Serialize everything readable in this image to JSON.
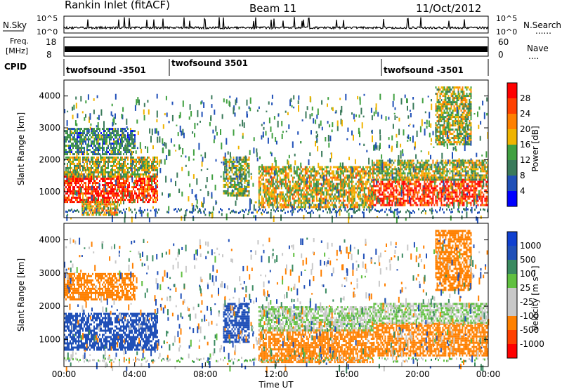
{
  "header": {
    "station": "Rankin Inlet (fitACF)",
    "beam": "Beam 11",
    "date": "11/Oct/2012"
  },
  "top_panels": {
    "nsky_label": "N.Sky",
    "nsearch_label": "N.Search",
    "nsearch_dots": "......",
    "noise_ticks": [
      "10^5",
      "10^0"
    ],
    "freq_label_1": "Freq.",
    "freq_label_2": "[MHz]",
    "freq_ticks": [
      "18",
      "8"
    ],
    "nave_label": "Nave",
    "nave_dots": "....",
    "nave_ticks": [
      "60",
      "0"
    ],
    "cpid_label": "CPID",
    "cpid_segments": [
      "twofsound -3501",
      "twofsound 3501",
      "twofsound -3501"
    ]
  },
  "axes": {
    "ylabel": "Slant Range [km]",
    "yticks": [
      "4000",
      "3000",
      "2000",
      "1000"
    ],
    "xlabel": "Time UT",
    "xticks": [
      "00:00",
      "04:00",
      "08:00",
      "12:00",
      "16:00",
      "20:00",
      "00:00"
    ]
  },
  "colors": {
    "power": [
      "#0000ff",
      "#2050b8",
      "#3a7a5a",
      "#40a040",
      "#f0b400",
      "#ff8000",
      "#ff4000",
      "#ff0000"
    ],
    "velocity": [
      "#ff0000",
      "#ff4000",
      "#ff8000",
      "#c8c8c8",
      "#c8c8c8",
      "#60c040",
      "#3a8a60",
      "#2050b8",
      "#1040d0"
    ]
  },
  "chart_data": [
    {
      "type": "heatmap",
      "title": "Power",
      "colorbar_label": "Power [dB]",
      "colorbar_ticks": [
        "28",
        "24",
        "20",
        "16",
        "12",
        "8",
        "4"
      ],
      "xlabel": "Time UT",
      "ylabel": "Slant Range [km]",
      "xlim": [
        0,
        24
      ],
      "ylim": [
        180,
        4500
      ],
      "regions": [
        {
          "t0": 0.0,
          "t1": 5.3,
          "r0": 700,
          "r1": 1500,
          "level": 28
        },
        {
          "t0": 0.0,
          "t1": 5.3,
          "r0": 1500,
          "r1": 2100,
          "level": 16
        },
        {
          "t0": 0.0,
          "t1": 4.0,
          "r0": 2200,
          "r1": 3000,
          "level": 10
        },
        {
          "t0": 1.0,
          "t1": 3.0,
          "r0": 300,
          "r1": 700,
          "level": 20
        },
        {
          "t0": 9.0,
          "t1": 10.5,
          "r0": 900,
          "r1": 2100,
          "level": 14
        },
        {
          "t0": 11.0,
          "t1": 17.5,
          "r0": 500,
          "r1": 1800,
          "level": 18
        },
        {
          "t0": 17.5,
          "t1": 24.0,
          "r0": 600,
          "r1": 1400,
          "level": 28
        },
        {
          "t0": 17.5,
          "t1": 24.0,
          "r0": 1400,
          "r1": 2000,
          "level": 16
        },
        {
          "t0": 21.0,
          "t1": 23.0,
          "r0": 2500,
          "r1": 4300,
          "level": 16
        }
      ]
    },
    {
      "type": "heatmap",
      "title": "Velocity",
      "colorbar_label": "Velocity [m s⁻¹]",
      "colorbar_ticks": [
        "1000",
        "500",
        "100",
        "25",
        "-25",
        "-100",
        "-500",
        "-1000"
      ],
      "xlabel": "Time UT",
      "ylabel": "Slant Range [km]",
      "xlim": [
        0,
        24
      ],
      "ylim": [
        180,
        4500
      ],
      "regions": [
        {
          "t0": 0.0,
          "t1": 5.3,
          "r0": 700,
          "r1": 1800,
          "level": 300
        },
        {
          "t0": 0.0,
          "t1": 4.0,
          "r0": 2200,
          "r1": 3000,
          "level": -200
        },
        {
          "t0": 9.0,
          "t1": 10.5,
          "r0": 900,
          "r1": 2100,
          "level": 300
        },
        {
          "t0": 11.0,
          "t1": 17.5,
          "r0": 300,
          "r1": 1300,
          "level": -300
        },
        {
          "t0": 11.0,
          "t1": 17.5,
          "r0": 1300,
          "r1": 2000,
          "level": 0
        },
        {
          "t0": 17.5,
          "t1": 24.0,
          "r0": 500,
          "r1": 1500,
          "level": -300
        },
        {
          "t0": 17.5,
          "t1": 24.0,
          "r0": 1500,
          "r1": 2100,
          "level": 0
        },
        {
          "t0": 21.0,
          "t1": 23.0,
          "r0": 2500,
          "r1": 4300,
          "level": -300
        }
      ]
    }
  ]
}
